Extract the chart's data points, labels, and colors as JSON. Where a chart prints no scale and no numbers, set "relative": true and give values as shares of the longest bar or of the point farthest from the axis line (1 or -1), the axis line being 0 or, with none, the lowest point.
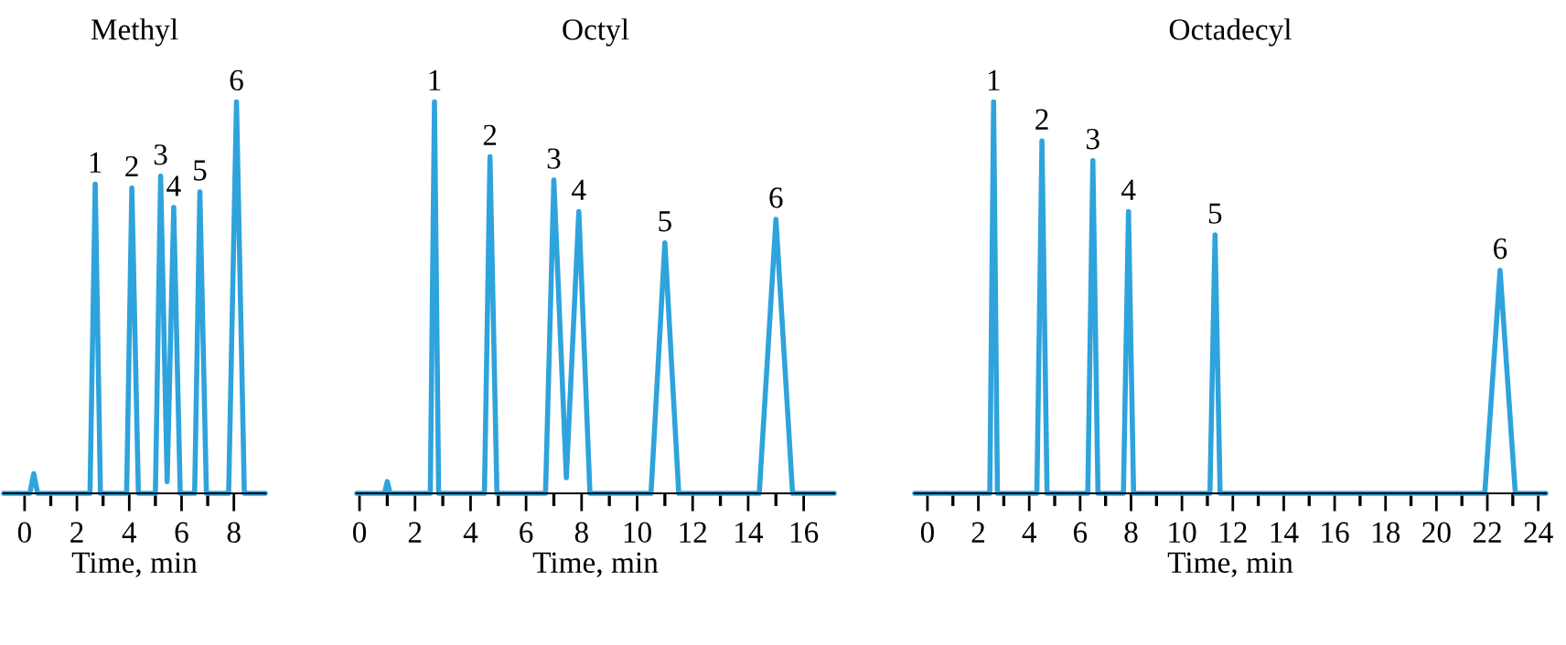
{
  "chart_data": [
    {
      "type": "line",
      "title": "Methyl",
      "xlabel": "Time, min",
      "relative": true,
      "xlim": [
        -0.8,
        9.2
      ],
      "xticks": [
        0,
        {
          "value": 1,
          "label": null
        },
        2,
        {
          "value": 3,
          "label": null
        },
        4,
        {
          "value": 5,
          "label": null
        },
        6,
        {
          "value": 7,
          "label": null
        },
        8
      ],
      "series": [
        {
          "color": "#2ea3dc",
          "x": [
            -0.8,
            0.2,
            0.35,
            0.5,
            2.5,
            2.7,
            2.9,
            3.9,
            4.1,
            4.35,
            5.0,
            5.2,
            5.45,
            5.7,
            5.95,
            6.5,
            6.7,
            6.95,
            7.8,
            8.1,
            8.4,
            9.2
          ],
          "values": [
            0,
            0,
            0.05,
            0,
            0,
            0.79,
            0,
            0,
            0.78,
            0,
            0,
            0.81,
            0.03,
            0.73,
            0,
            0,
            0.77,
            0,
            0,
            1,
            0,
            0
          ]
        }
      ],
      "annotations": [
        {
          "text": "1",
          "x": 2.7,
          "y": 0.79
        },
        {
          "text": "2",
          "x": 4.1,
          "y": 0.78
        },
        {
          "text": "3",
          "x": 5.2,
          "y": 0.81
        },
        {
          "text": "4",
          "x": 5.7,
          "y": 0.73
        },
        {
          "text": "5",
          "x": 6.7,
          "y": 0.77
        },
        {
          "text": "6",
          "x": 8.1,
          "y": 1
        }
      ],
      "grid": false,
      "legend": false
    },
    {
      "type": "line",
      "title": "Octyl",
      "xlabel": "Time, min",
      "relative": true,
      "xlim": [
        -0.1,
        17.1
      ],
      "xticks": [
        0,
        {
          "value": 1,
          "label": null
        },
        2,
        {
          "value": 3,
          "label": null
        },
        4,
        {
          "value": 5,
          "label": null
        },
        6,
        {
          "value": 7,
          "label": null
        },
        8,
        {
          "value": 9,
          "label": null
        },
        10,
        {
          "value": 11,
          "label": null
        },
        12,
        {
          "value": 13,
          "label": null
        },
        14,
        {
          "value": 15,
          "label": null
        },
        16
      ],
      "series": [
        {
          "color": "#2ea3dc",
          "x": [
            -0.1,
            0.9,
            1.0,
            1.1,
            2.55,
            2.7,
            2.85,
            4.5,
            4.7,
            4.95,
            6.7,
            7.0,
            7.45,
            7.9,
            8.3,
            10.5,
            11.0,
            11.5,
            14.4,
            15.0,
            15.6,
            17.1
          ],
          "values": [
            0,
            0,
            0.03,
            0,
            0,
            1,
            0,
            0,
            0.86,
            0,
            0,
            0.8,
            0.04,
            0.72,
            0,
            0,
            0.64,
            0,
            0,
            0.7,
            0,
            0
          ]
        }
      ],
      "annotations": [
        {
          "text": "1",
          "x": 2.7,
          "y": 1
        },
        {
          "text": "2",
          "x": 4.7,
          "y": 0.86
        },
        {
          "text": "3",
          "x": 7.0,
          "y": 0.8
        },
        {
          "text": "4",
          "x": 7.9,
          "y": 0.72
        },
        {
          "text": "5",
          "x": 11.0,
          "y": 0.64
        },
        {
          "text": "6",
          "x": 15.0,
          "y": 0.7
        }
      ],
      "grid": false,
      "legend": false
    },
    {
      "type": "line",
      "title": "Octadecyl",
      "xlabel": "Time, min",
      "relative": true,
      "xlim": [
        -0.5,
        24.3
      ],
      "xticks": [
        0,
        {
          "value": 1,
          "label": null
        },
        2,
        {
          "value": 3,
          "label": null
        },
        4,
        {
          "value": 5,
          "label": null
        },
        6,
        {
          "value": 7,
          "label": null
        },
        8,
        {
          "value": 9,
          "label": null
        },
        10,
        {
          "value": 11,
          "label": null
        },
        12,
        {
          "value": 13,
          "label": null
        },
        14,
        {
          "value": 15,
          "label": null
        },
        16,
        {
          "value": 17,
          "label": null
        },
        18,
        {
          "value": 19,
          "label": null
        },
        20,
        {
          "value": 21,
          "label": null
        },
        22,
        {
          "value": 23,
          "label": null
        },
        24
      ],
      "series": [
        {
          "color": "#2ea3dc",
          "x": [
            -0.5,
            2.45,
            2.6,
            2.75,
            4.3,
            4.5,
            4.7,
            6.3,
            6.5,
            6.7,
            7.7,
            7.9,
            8.1,
            11.1,
            11.3,
            11.5,
            21.9,
            22.5,
            23.1,
            24.3
          ],
          "values": [
            0,
            0,
            1,
            0,
            0,
            0.9,
            0,
            0,
            0.85,
            0,
            0,
            0.72,
            0,
            0,
            0.66,
            0,
            0,
            0.57,
            0,
            0
          ]
        }
      ],
      "annotations": [
        {
          "text": "1",
          "x": 2.6,
          "y": 1
        },
        {
          "text": "2",
          "x": 4.5,
          "y": 0.9
        },
        {
          "text": "3",
          "x": 6.5,
          "y": 0.85
        },
        {
          "text": "4",
          "x": 7.9,
          "y": 0.72
        },
        {
          "text": "5",
          "x": 11.3,
          "y": 0.66
        },
        {
          "text": "6",
          "x": 22.5,
          "y": 0.57
        }
      ],
      "grid": false,
      "legend": false
    }
  ]
}
